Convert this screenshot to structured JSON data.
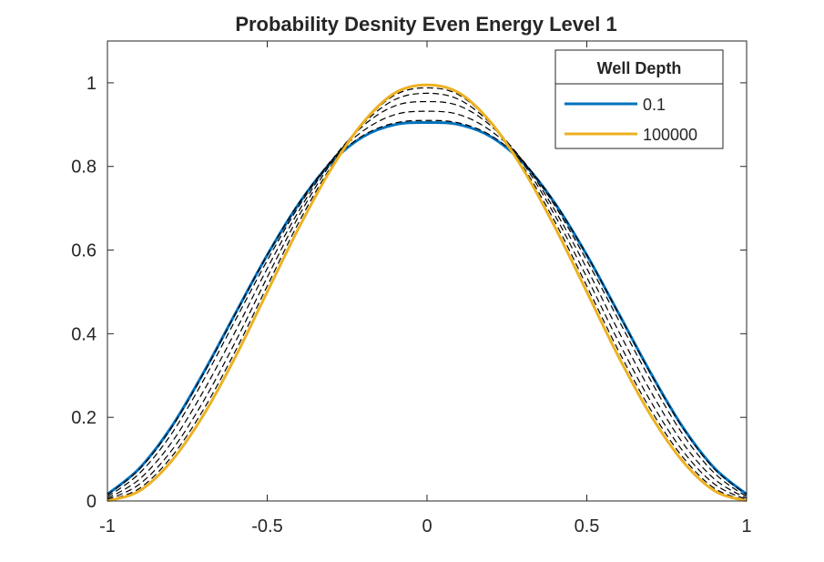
{
  "chart_data": {
    "type": "line",
    "title": "Probability Desnity Even Energy Level 1",
    "xlabel": "",
    "ylabel": "",
    "xlim": [
      -1,
      1
    ],
    "ylim": [
      0,
      1.1
    ],
    "x_ticks": [
      "-1",
      "-0.5",
      "0",
      "0.5",
      "1"
    ],
    "y_ticks": [
      "0",
      "0.2",
      "0.4",
      "0.6",
      "0.8",
      "1"
    ],
    "grid": false,
    "legend": {
      "title": "Well Depth",
      "placement": "top-right",
      "entries": [
        "0.1",
        "100000"
      ]
    },
    "x": [
      -1.0,
      -0.9,
      -0.8,
      -0.7,
      -0.6,
      -0.5,
      -0.4,
      -0.3,
      -0.2,
      -0.1,
      0.0,
      0.1,
      0.2,
      0.3,
      0.4,
      0.5,
      0.6,
      0.7,
      0.8,
      0.9,
      1.0
    ],
    "series": [
      {
        "name": "0.1",
        "color": "#0072BD",
        "style": "solid",
        "values": [
          0.016,
          0.078,
          0.177,
          0.306,
          0.448,
          0.588,
          0.712,
          0.809,
          0.871,
          0.9,
          0.905,
          0.9,
          0.871,
          0.809,
          0.712,
          0.588,
          0.448,
          0.306,
          0.177,
          0.078,
          0.016
        ]
      },
      {
        "name": "100000",
        "color": "#EDB120",
        "style": "solid",
        "values": [
          0.0,
          0.024,
          0.095,
          0.205,
          0.344,
          0.5,
          0.655,
          0.794,
          0.905,
          0.976,
          0.995,
          0.976,
          0.905,
          0.794,
          0.655,
          0.5,
          0.344,
          0.205,
          0.095,
          0.024,
          0.0
        ]
      },
      {
        "color": "#000000",
        "style": "dashed",
        "values": [
          0.015,
          0.076,
          0.175,
          0.304,
          0.447,
          0.588,
          0.713,
          0.811,
          0.874,
          0.904,
          0.91,
          0.904,
          0.874,
          0.811,
          0.713,
          0.588,
          0.447,
          0.304,
          0.175,
          0.076,
          0.015
        ]
      },
      {
        "color": "#000000",
        "style": "dashed",
        "values": [
          0.01,
          0.066,
          0.16,
          0.288,
          0.432,
          0.575,
          0.706,
          0.814,
          0.885,
          0.924,
          0.932,
          0.924,
          0.885,
          0.814,
          0.706,
          0.575,
          0.432,
          0.288,
          0.16,
          0.066,
          0.01
        ]
      },
      {
        "color": "#000000",
        "style": "dashed",
        "values": [
          0.006,
          0.052,
          0.139,
          0.262,
          0.405,
          0.556,
          0.695,
          0.813,
          0.897,
          0.945,
          0.955,
          0.945,
          0.897,
          0.813,
          0.695,
          0.556,
          0.405,
          0.262,
          0.139,
          0.052,
          0.006
        ]
      },
      {
        "color": "#000000",
        "style": "dashed",
        "values": [
          0.003,
          0.04,
          0.12,
          0.238,
          0.38,
          0.535,
          0.683,
          0.808,
          0.902,
          0.96,
          0.975,
          0.96,
          0.902,
          0.808,
          0.683,
          0.535,
          0.38,
          0.238,
          0.12,
          0.04,
          0.003
        ]
      },
      {
        "color": "#000000",
        "style": "dashed",
        "values": [
          0.001,
          0.03,
          0.105,
          0.218,
          0.358,
          0.514,
          0.668,
          0.8,
          0.904,
          0.971,
          0.988,
          0.971,
          0.904,
          0.8,
          0.668,
          0.514,
          0.358,
          0.218,
          0.105,
          0.03,
          0.001
        ]
      }
    ]
  }
}
